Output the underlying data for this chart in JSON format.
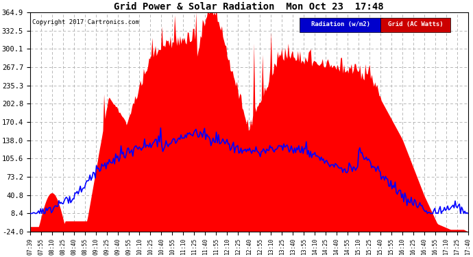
{
  "title": "Grid Power & Solar Radiation  Mon Oct 23  17:48",
  "copyright": "Copyright 2017 Cartronics.com",
  "bg_color": "#ffffff",
  "plot_bg_color": "#ffffff",
  "grid_color": "#b0b0b0",
  "y_ticks": [
    -24.0,
    8.4,
    40.8,
    73.2,
    105.6,
    138.0,
    170.4,
    202.8,
    235.3,
    267.7,
    300.1,
    332.5,
    364.9
  ],
  "ylim": [
    -24.0,
    364.9
  ],
  "legend_labels": [
    "Radiation (w/m2)",
    "Grid (AC Watts)"
  ],
  "legend_colors_bg": [
    "#0000cc",
    "#cc0000"
  ],
  "legend_text_color": "#ffffff",
  "fill_color": "#ff0000",
  "line_color": "#0000ff",
  "x_labels": [
    "07:39",
    "07:55",
    "08:10",
    "08:25",
    "08:40",
    "08:55",
    "09:10",
    "09:25",
    "09:40",
    "09:55",
    "10:10",
    "10:25",
    "10:40",
    "10:55",
    "11:10",
    "11:25",
    "11:40",
    "11:55",
    "12:10",
    "12:25",
    "12:40",
    "12:55",
    "13:10",
    "13:25",
    "13:40",
    "13:55",
    "14:10",
    "14:25",
    "14:40",
    "14:55",
    "15:10",
    "15:25",
    "15:40",
    "15:55",
    "16:10",
    "16:25",
    "16:40",
    "16:55",
    "17:10",
    "17:25",
    "17:40"
  ]
}
